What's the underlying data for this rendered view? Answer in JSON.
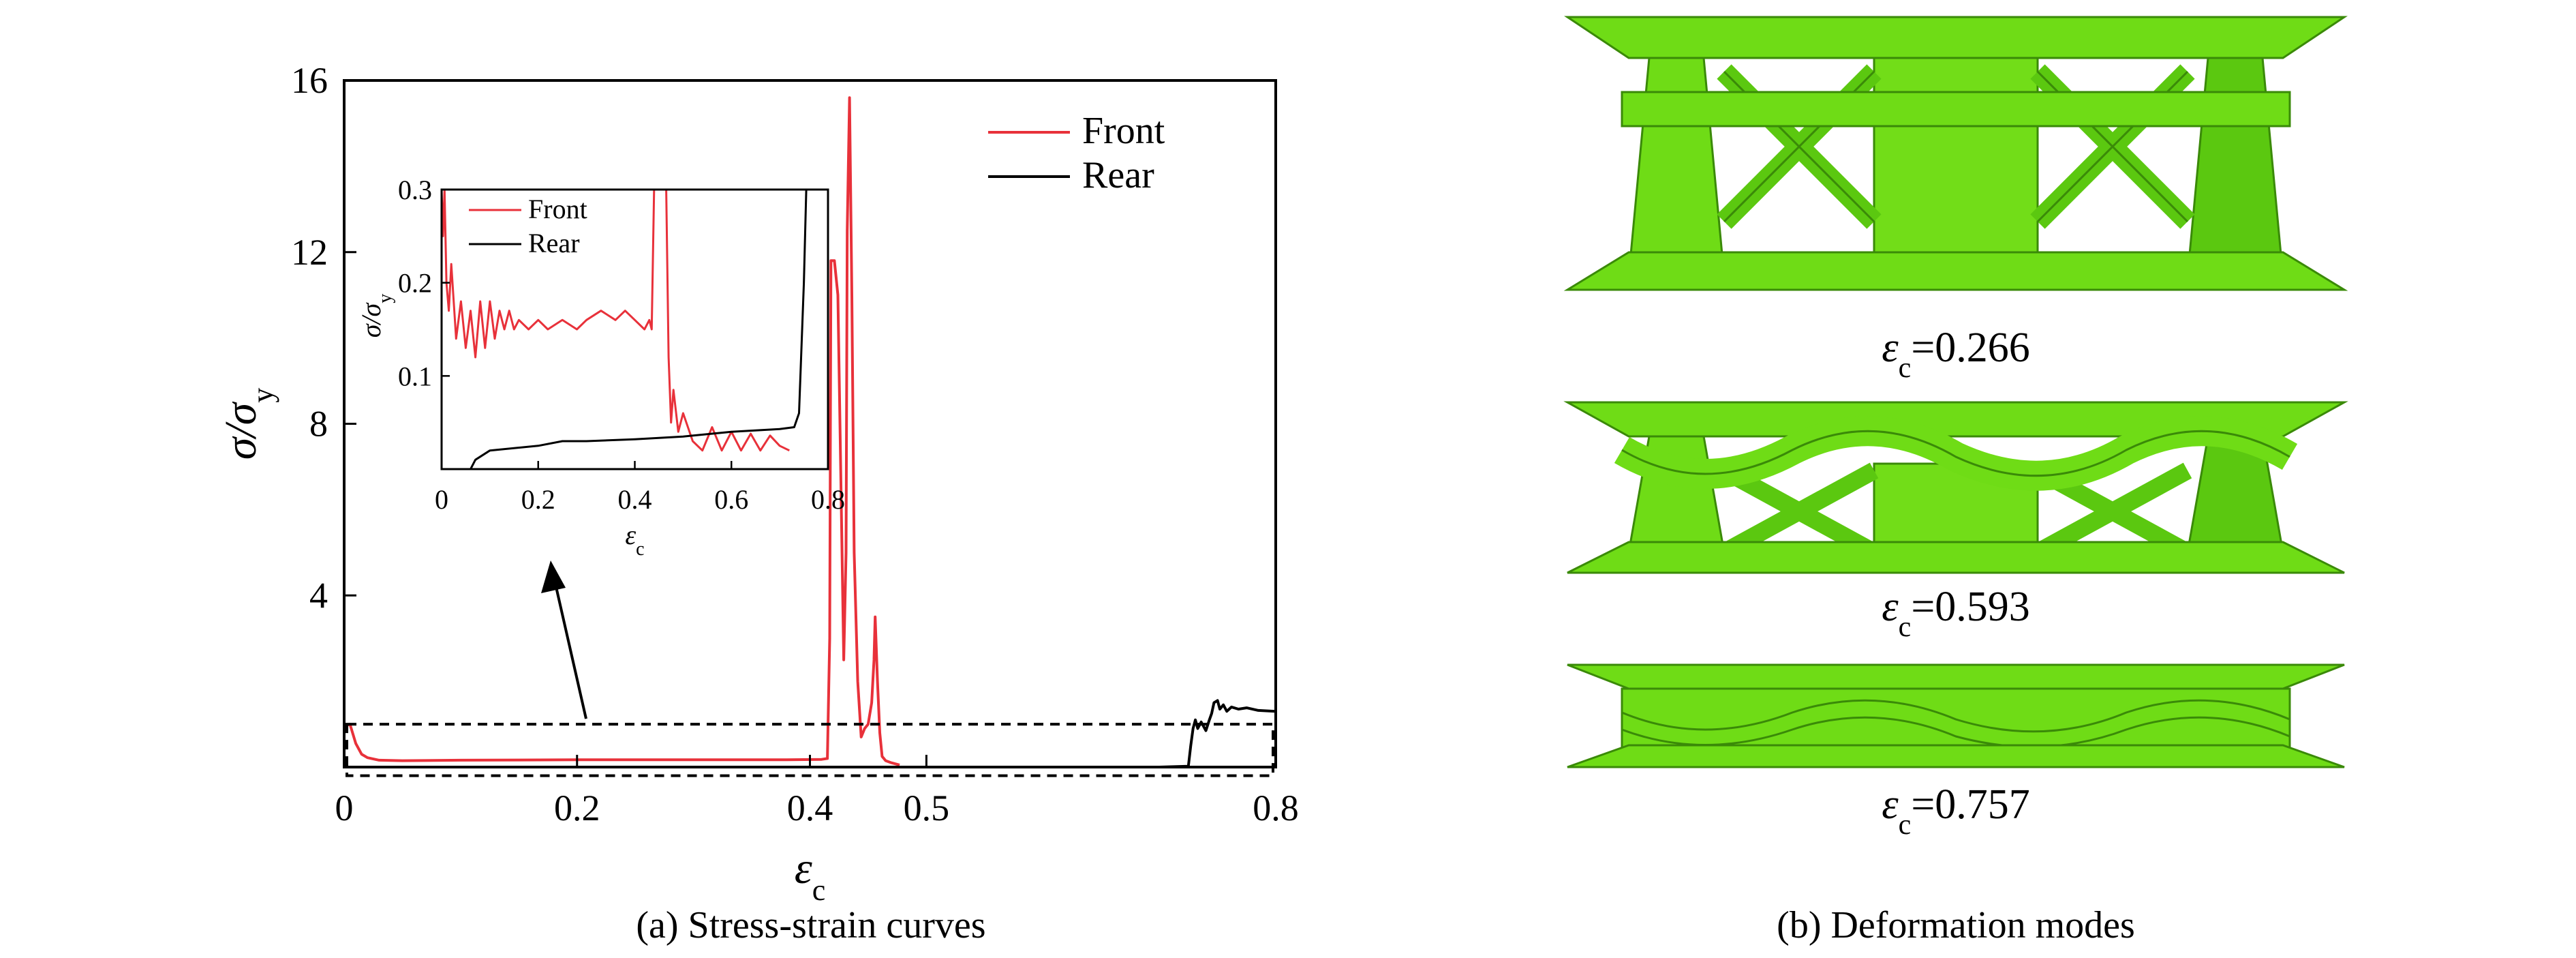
{
  "chart_data": [
    {
      "type": "line",
      "panel_caption": "(a) Stress-strain curves",
      "xlabel": {
        "base": "ε",
        "sub": "c"
      },
      "ylabel": {
        "base": "σ/σ",
        "sub": "y"
      },
      "xlim": [
        0,
        0.8
      ],
      "ylim": [
        0,
        16
      ],
      "xticks": [
        {
          "v": 0,
          "t": "0"
        },
        {
          "v": 0.2,
          "t": "0.2"
        },
        {
          "v": 0.4,
          "t": "0.4"
        },
        {
          "v": 0.5,
          "t": "0.5"
        },
        {
          "v": 0.8,
          "t": "0.8"
        }
      ],
      "yticks": [
        {
          "v": 4,
          "t": "4"
        },
        {
          "v": 8,
          "t": "8"
        },
        {
          "v": 12,
          "t": "12"
        },
        {
          "v": 16,
          "t": "16"
        }
      ],
      "legend_position": "top-right",
      "series": [
        {
          "name": "Front",
          "color": "#e8313a",
          "points": [
            [
              0.0,
              0.95
            ],
            [
              0.005,
              1.0
            ],
            [
              0.01,
              0.55
            ],
            [
              0.015,
              0.3
            ],
            [
              0.02,
              0.22
            ],
            [
              0.03,
              0.16
            ],
            [
              0.05,
              0.15
            ],
            [
              0.1,
              0.16
            ],
            [
              0.2,
              0.17
            ],
            [
              0.3,
              0.17
            ],
            [
              0.38,
              0.17
            ],
            [
              0.41,
              0.18
            ],
            [
              0.415,
              0.2
            ],
            [
              0.417,
              3.0
            ],
            [
              0.418,
              11.8
            ],
            [
              0.421,
              11.8
            ],
            [
              0.424,
              11.0
            ],
            [
              0.427,
              6.0
            ],
            [
              0.429,
              2.5
            ],
            [
              0.431,
              5.0
            ],
            [
              0.432,
              12.5
            ],
            [
              0.434,
              15.6
            ],
            [
              0.436,
              11.0
            ],
            [
              0.438,
              5.0
            ],
            [
              0.441,
              2.0
            ],
            [
              0.444,
              0.7
            ],
            [
              0.447,
              0.9
            ],
            [
              0.45,
              1.0
            ],
            [
              0.453,
              1.5
            ],
            [
              0.455,
              2.5
            ],
            [
              0.456,
              3.5
            ],
            [
              0.458,
              2.0
            ],
            [
              0.46,
              0.8
            ],
            [
              0.462,
              0.25
            ],
            [
              0.465,
              0.15
            ],
            [
              0.47,
              0.1
            ],
            [
              0.477,
              0.05
            ]
          ]
        },
        {
          "name": "Rear",
          "color": "#000000",
          "points": [
            [
              0.0,
              0.0
            ],
            [
              0.3,
              0.0
            ],
            [
              0.5,
              0.0
            ],
            [
              0.7,
              0.0
            ],
            [
              0.725,
              0.02
            ],
            [
              0.727,
              0.5
            ],
            [
              0.729,
              0.9
            ],
            [
              0.731,
              1.1
            ],
            [
              0.733,
              0.9
            ],
            [
              0.736,
              1.05
            ],
            [
              0.74,
              0.85
            ],
            [
              0.743,
              1.1
            ],
            [
              0.745,
              1.25
            ],
            [
              0.747,
              1.5
            ],
            [
              0.75,
              1.55
            ],
            [
              0.752,
              1.35
            ],
            [
              0.755,
              1.45
            ],
            [
              0.758,
              1.3
            ],
            [
              0.762,
              1.4
            ],
            [
              0.768,
              1.35
            ],
            [
              0.775,
              1.38
            ],
            [
              0.785,
              1.32
            ],
            [
              0.8,
              1.3
            ]
          ]
        }
      ],
      "annotation": {
        "box_y_range": [
          -0.2,
          1.0
        ],
        "arrow": "box-to-inset"
      }
    },
    {
      "type": "line",
      "role": "inset",
      "xlabel": {
        "base": "ε",
        "sub": "c"
      },
      "ylabel": {
        "base": "σ/σ",
        "sub": "y"
      },
      "xlim": [
        0,
        0.8
      ],
      "ylim": [
        0,
        0.3
      ],
      "xticks": [
        {
          "v": 0,
          "t": "0"
        },
        {
          "v": 0.2,
          "t": "0.2"
        },
        {
          "v": 0.4,
          "t": "0.4"
        },
        {
          "v": 0.6,
          "t": "0.6"
        },
        {
          "v": 0.8,
          "t": "0.8"
        }
      ],
      "yticks": [
        {
          "v": 0.1,
          "t": "0.1"
        },
        {
          "v": 0.2,
          "t": "0.2"
        },
        {
          "v": 0.3,
          "t": "0.3"
        }
      ],
      "legend_position": "top-left",
      "series": [
        {
          "name": "Front",
          "color": "#e8313a",
          "points": [
            [
              0.0,
              0.3
            ],
            [
              0.003,
              0.25
            ],
            [
              0.006,
              0.3
            ],
            [
              0.01,
              0.2
            ],
            [
              0.015,
              0.17
            ],
            [
              0.02,
              0.22
            ],
            [
              0.03,
              0.14
            ],
            [
              0.04,
              0.18
            ],
            [
              0.05,
              0.13
            ],
            [
              0.06,
              0.17
            ],
            [
              0.07,
              0.12
            ],
            [
              0.08,
              0.18
            ],
            [
              0.09,
              0.13
            ],
            [
              0.1,
              0.18
            ],
            [
              0.11,
              0.14
            ],
            [
              0.12,
              0.17
            ],
            [
              0.13,
              0.15
            ],
            [
              0.14,
              0.17
            ],
            [
              0.15,
              0.15
            ],
            [
              0.16,
              0.16
            ],
            [
              0.18,
              0.15
            ],
            [
              0.2,
              0.16
            ],
            [
              0.22,
              0.15
            ],
            [
              0.25,
              0.16
            ],
            [
              0.28,
              0.15
            ],
            [
              0.3,
              0.16
            ],
            [
              0.33,
              0.17
            ],
            [
              0.36,
              0.16
            ],
            [
              0.38,
              0.17
            ],
            [
              0.4,
              0.16
            ],
            [
              0.42,
              0.15
            ],
            [
              0.43,
              0.16
            ],
            [
              0.435,
              0.15
            ],
            [
              0.44,
              0.3
            ],
            [
              0.45,
              0.3
            ],
            [
              0.465,
              0.3
            ],
            [
              0.47,
              0.12
            ],
            [
              0.475,
              0.05
            ],
            [
              0.48,
              0.085
            ],
            [
              0.49,
              0.04
            ],
            [
              0.5,
              0.06
            ],
            [
              0.52,
              0.03
            ],
            [
              0.54,
              0.02
            ],
            [
              0.56,
              0.045
            ],
            [
              0.58,
              0.02
            ],
            [
              0.6,
              0.04
            ],
            [
              0.62,
              0.02
            ],
            [
              0.64,
              0.038
            ],
            [
              0.66,
              0.02
            ],
            [
              0.68,
              0.036
            ],
            [
              0.7,
              0.025
            ],
            [
              0.72,
              0.02
            ]
          ]
        },
        {
          "name": "Rear",
          "color": "#000000",
          "points": [
            [
              0.06,
              0.0
            ],
            [
              0.07,
              0.01
            ],
            [
              0.1,
              0.02
            ],
            [
              0.2,
              0.025
            ],
            [
              0.25,
              0.03
            ],
            [
              0.3,
              0.03
            ],
            [
              0.4,
              0.032
            ],
            [
              0.5,
              0.035
            ],
            [
              0.6,
              0.04
            ],
            [
              0.7,
              0.043
            ],
            [
              0.73,
              0.045
            ],
            [
              0.74,
              0.06
            ],
            [
              0.75,
              0.2
            ],
            [
              0.755,
              0.3
            ]
          ]
        }
      ]
    }
  ],
  "deformation": {
    "panel_caption": "(b) Deformation modes",
    "color": "#6fdc16",
    "states": [
      {
        "eps_symbol": "ε",
        "eps_sub": "c",
        "value": "=0.266"
      },
      {
        "eps_symbol": "ε",
        "eps_sub": "c",
        "value": "=0.593"
      },
      {
        "eps_symbol": "ε",
        "eps_sub": "c",
        "value": "=0.757"
      }
    ]
  }
}
